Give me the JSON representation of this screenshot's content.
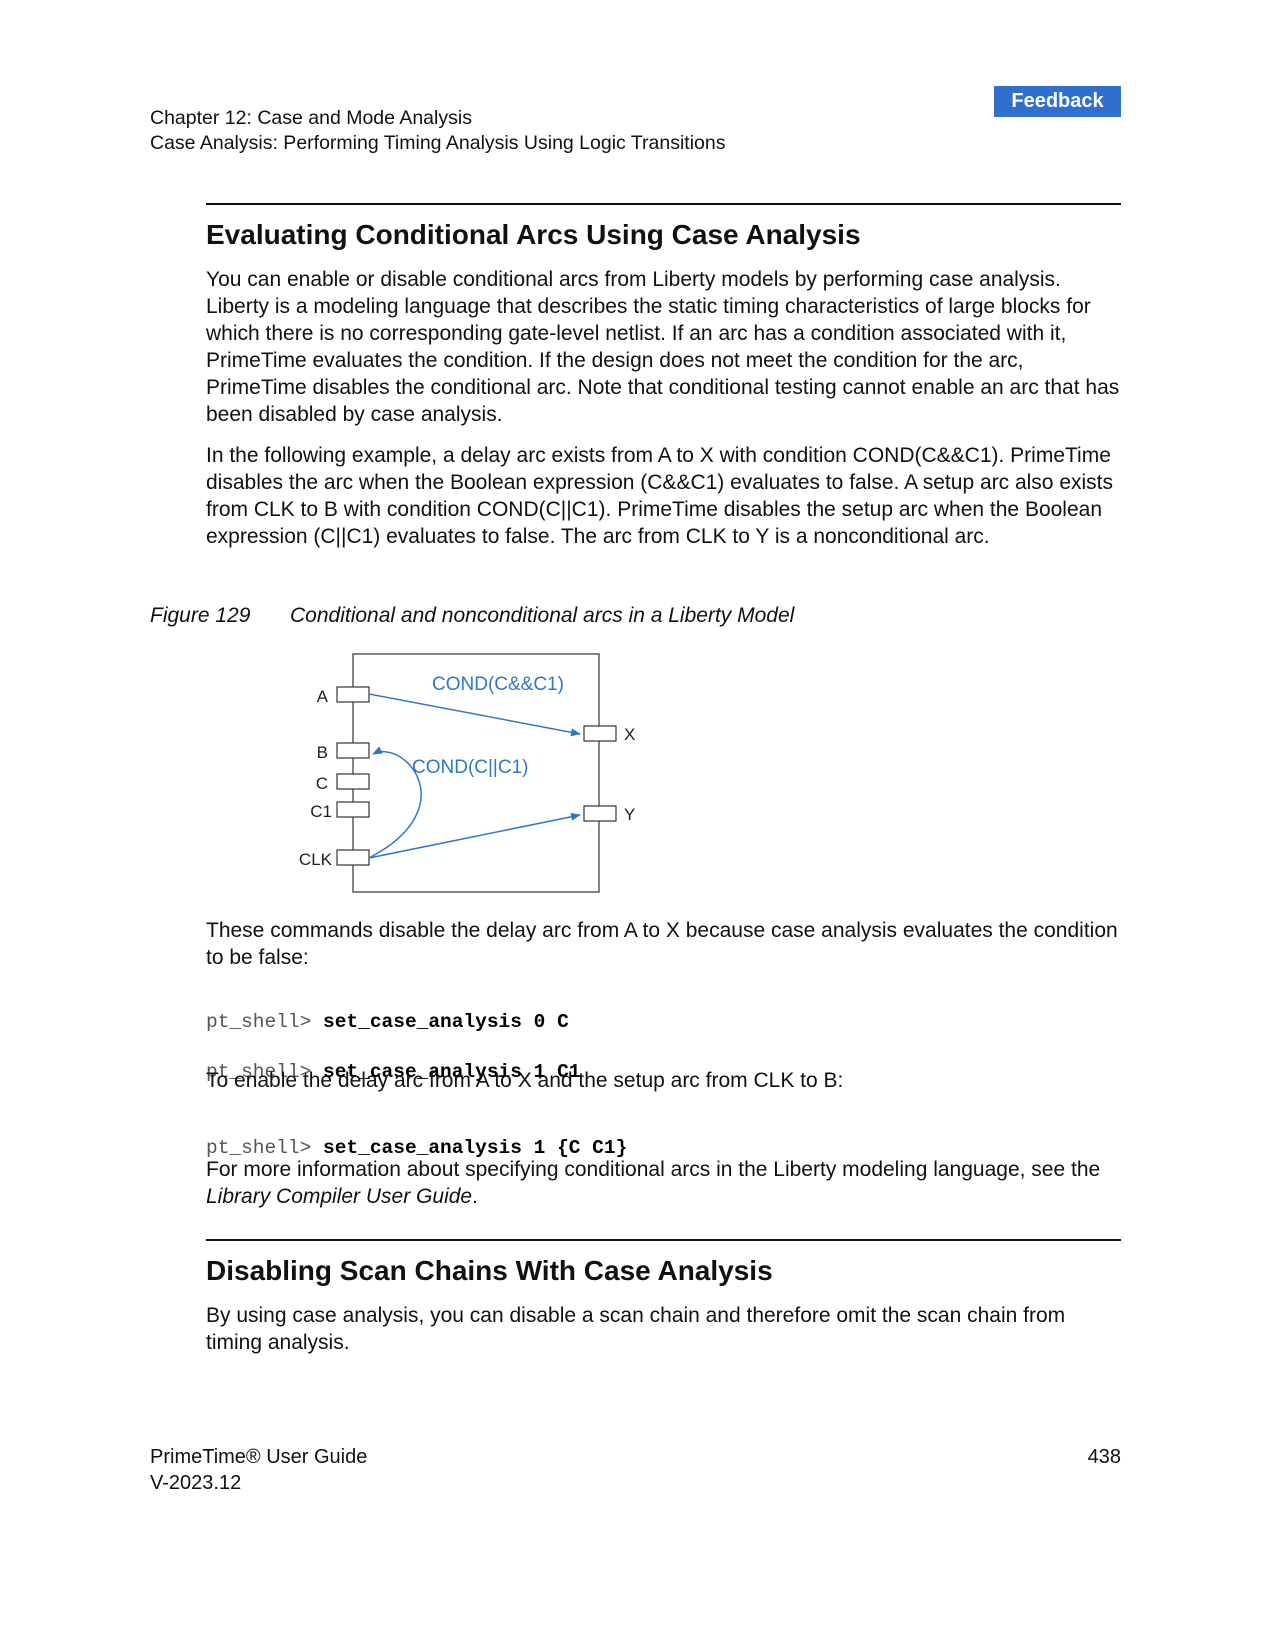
{
  "header": {
    "feedback_label": "Feedback",
    "chapter": "Chapter 12: Case and Mode Analysis",
    "section": "Case Analysis: Performing Timing Analysis Using Logic Transitions"
  },
  "section1": {
    "title": "Evaluating Conditional Arcs Using Case Analysis",
    "para1": "You can enable or disable conditional arcs from Liberty models by performing case analysis. Liberty is a modeling language that describes the static timing characteristics of large blocks for which there is no corresponding gate-level netlist. If an arc has a condition associated with it, PrimeTime evaluates the condition. If the design does not meet the condition for the arc, PrimeTime disables the conditional arc. Note that conditional testing cannot enable an arc that has been disabled by case analysis.",
    "para2": "In the following example, a delay arc exists from A to X with condition COND(C&&C1). PrimeTime disables the arc when the Boolean expression (C&&C1) evaluates to false. A setup arc also exists from CLK to B with condition COND(C||C1). PrimeTime disables the setup arc when the Boolean expression (C||C1) evaluates to false. The arc from CLK to Y is a nonconditional arc."
  },
  "figure": {
    "number": "Figure 129",
    "caption": "Conditional and nonconditional arcs in a Liberty Model",
    "pins_left": [
      "A",
      "B",
      "C",
      "C1",
      "CLK"
    ],
    "pins_right": [
      "X",
      "Y"
    ],
    "arc_label_1": "COND(C&&C1)",
    "arc_label_2": "COND(C||C1)",
    "arc_color": "#2f78c8"
  },
  "commands_intro": "These commands disable the delay arc from A to X because case analysis evaluates the condition to be false:",
  "code1": [
    {
      "prompt": "pt_shell> ",
      "command": "set_case_analysis 0 C"
    },
    {
      "prompt": "pt_shell> ",
      "command": "set_case_analysis 1 C1"
    }
  ],
  "enable_intro": "To enable the delay arc from A to X and the setup arc from CLK to B:",
  "code2": [
    {
      "prompt": "pt_shell> ",
      "command": "set_case_analysis 1 {C C1}"
    }
  ],
  "more_info": {
    "before": "For more information about specifying conditional arcs in the Liberty modeling language, see the ",
    "italic": "Library Compiler User Guide",
    "after": "."
  },
  "section2": {
    "title": "Disabling Scan Chains With Case Analysis",
    "para1": "By using case analysis, you can disable a scan chain and therefore omit the scan chain from timing analysis."
  },
  "footer": {
    "product": "PrimeTime® User Guide",
    "version": "V-2023.12",
    "page": "438"
  }
}
